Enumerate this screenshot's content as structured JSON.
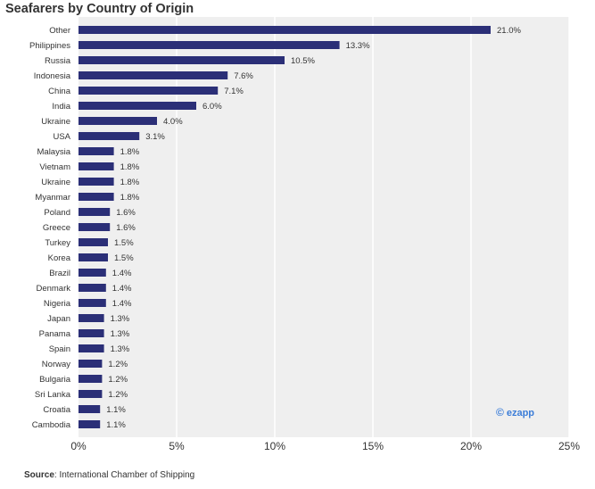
{
  "title": "Seafarers by Country of Origin",
  "source": {
    "label": "Source",
    "text": ": International Chamber of Shipping"
  },
  "logo": {
    "mark": "©",
    "text": "ezapp"
  },
  "colors": {
    "bar": "#2b2f77",
    "plot_bg": "#efefef",
    "grid": "#ffffff",
    "logo": "#3b7dd8"
  },
  "chart_data": {
    "type": "bar",
    "orientation": "horizontal",
    "title": "Seafarers by Country of Origin",
    "categories": [
      "Other",
      "Philippines",
      "Russia",
      "Indonesia",
      "China",
      "India",
      "Ukraine",
      "USA",
      "Malaysia",
      "Vietnam",
      "Ukraine",
      "Myanmar",
      "Poland",
      "Greece",
      "Turkey",
      "Korea",
      "Brazil",
      "Denmark",
      "Nigeria",
      "Japan",
      "Panama",
      "Spain",
      "Norway",
      "Bulgaria",
      "Sri Lanka",
      "Croatia",
      "Cambodia"
    ],
    "values": [
      21.0,
      13.3,
      10.5,
      7.6,
      7.1,
      6.0,
      4.0,
      3.1,
      1.8,
      1.8,
      1.8,
      1.8,
      1.6,
      1.6,
      1.5,
      1.5,
      1.4,
      1.4,
      1.4,
      1.3,
      1.3,
      1.3,
      1.2,
      1.2,
      1.2,
      1.1,
      1.1
    ],
    "value_labels": [
      "21.0%",
      "13.3%",
      "10.5%",
      "7.6%",
      "7.1%",
      "6.0%",
      "4.0%",
      "3.1%",
      "1.8%",
      "1.8%",
      "1.8%",
      "1.8%",
      "1.6%",
      "1.6%",
      "1.5%",
      "1.5%",
      "1.4%",
      "1.4%",
      "1.4%",
      "1.3%",
      "1.3%",
      "1.3%",
      "1.2%",
      "1.2%",
      "1.2%",
      "1.1%",
      "1.1%"
    ],
    "xlim": [
      0,
      25
    ],
    "xticks": [
      0,
      5,
      10,
      15,
      20,
      25
    ],
    "xtick_labels": [
      "0%",
      "5%",
      "10%",
      "15%",
      "20%",
      "25%"
    ],
    "xlabel": "",
    "ylabel": "",
    "grid": true
  }
}
